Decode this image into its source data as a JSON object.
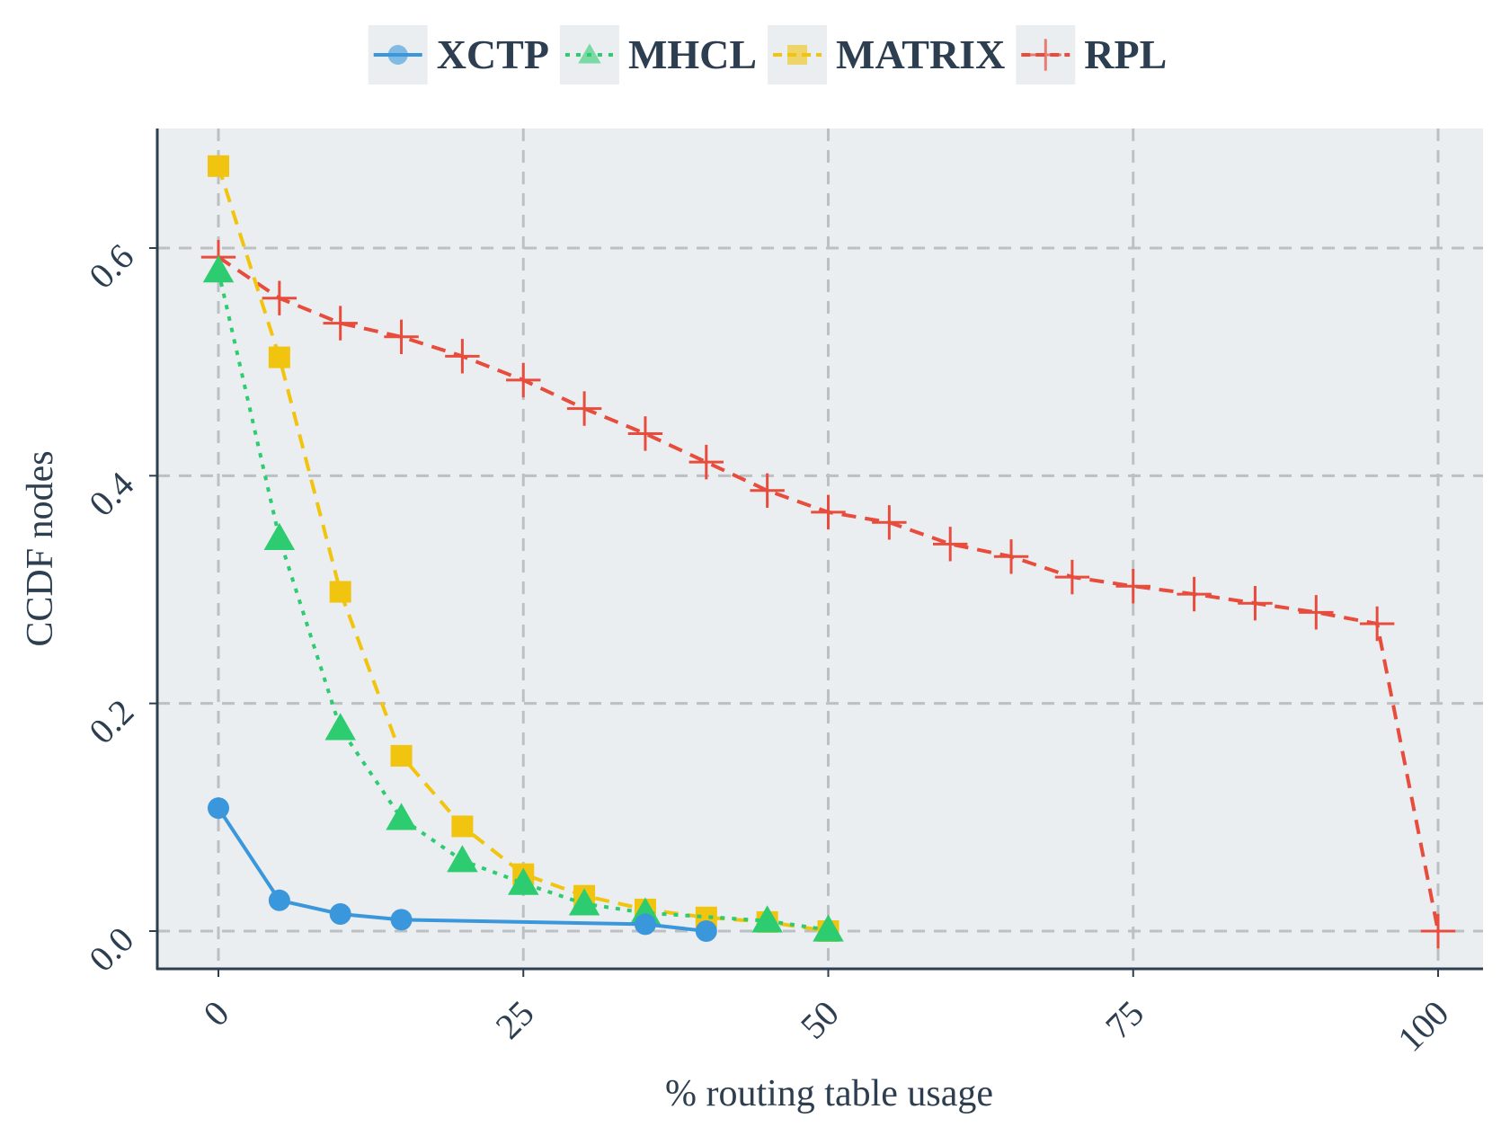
{
  "chart_data": {
    "type": "line",
    "title": "",
    "xlabel": "% routing table usage",
    "ylabel": "CCDF nodes",
    "xlim": [
      -5,
      105
    ],
    "ylim": [
      -0.032,
      0.7
    ],
    "grid": true,
    "legend_position": "top",
    "x_ticks": [
      0,
      25,
      50,
      75,
      100
    ],
    "y_ticks": [
      0.0,
      0.2,
      0.4,
      0.6
    ],
    "x_tick_labels": [
      "0",
      "25",
      "50",
      "75",
      "100"
    ],
    "y_tick_labels": [
      "0.0",
      "0.2",
      "0.4",
      "0.6"
    ],
    "colors": {
      "panel_bg": "#ebeef0",
      "grid": "#bdc0c3",
      "axis": "#2c3e50",
      "text": "#2c3e50"
    },
    "series": [
      {
        "name": "XCTP",
        "color": "#3b97db",
        "marker": "circle",
        "line_style": "solid",
        "x": [
          0,
          5,
          10,
          15,
          35,
          40
        ],
        "y": [
          0.108,
          0.027,
          0.015,
          0.01,
          0.006,
          0.0
        ]
      },
      {
        "name": "MHCL",
        "color": "#2ecc71",
        "marker": "triangle",
        "line_style": "dotted",
        "x": [
          0,
          5,
          10,
          15,
          20,
          25,
          30,
          35,
          45,
          50
        ],
        "y": [
          0.58,
          0.345,
          0.178,
          0.099,
          0.062,
          0.042,
          0.024,
          0.016,
          0.009,
          0.001
        ]
      },
      {
        "name": "MATRIX",
        "color": "#f1c40f",
        "marker": "square",
        "line_style": "dashed",
        "x": [
          0,
          5,
          10,
          15,
          20,
          25,
          30,
          35,
          40,
          45,
          50
        ],
        "y": [
          0.672,
          0.504,
          0.298,
          0.154,
          0.092,
          0.05,
          0.031,
          0.019,
          0.012,
          0.008,
          0.0
        ]
      },
      {
        "name": "RPL",
        "color": "#e74c3c",
        "marker": "plus",
        "line_style": "dashed",
        "x": [
          0,
          5,
          10,
          15,
          20,
          25,
          30,
          35,
          40,
          45,
          50,
          55,
          60,
          65,
          70,
          75,
          80,
          85,
          90,
          95,
          100
        ],
        "y": [
          0.592,
          0.556,
          0.534,
          0.522,
          0.505,
          0.484,
          0.459,
          0.437,
          0.412,
          0.387,
          0.368,
          0.359,
          0.34,
          0.329,
          0.311,
          0.303,
          0.296,
          0.288,
          0.28,
          0.27,
          0.0
        ]
      }
    ]
  }
}
